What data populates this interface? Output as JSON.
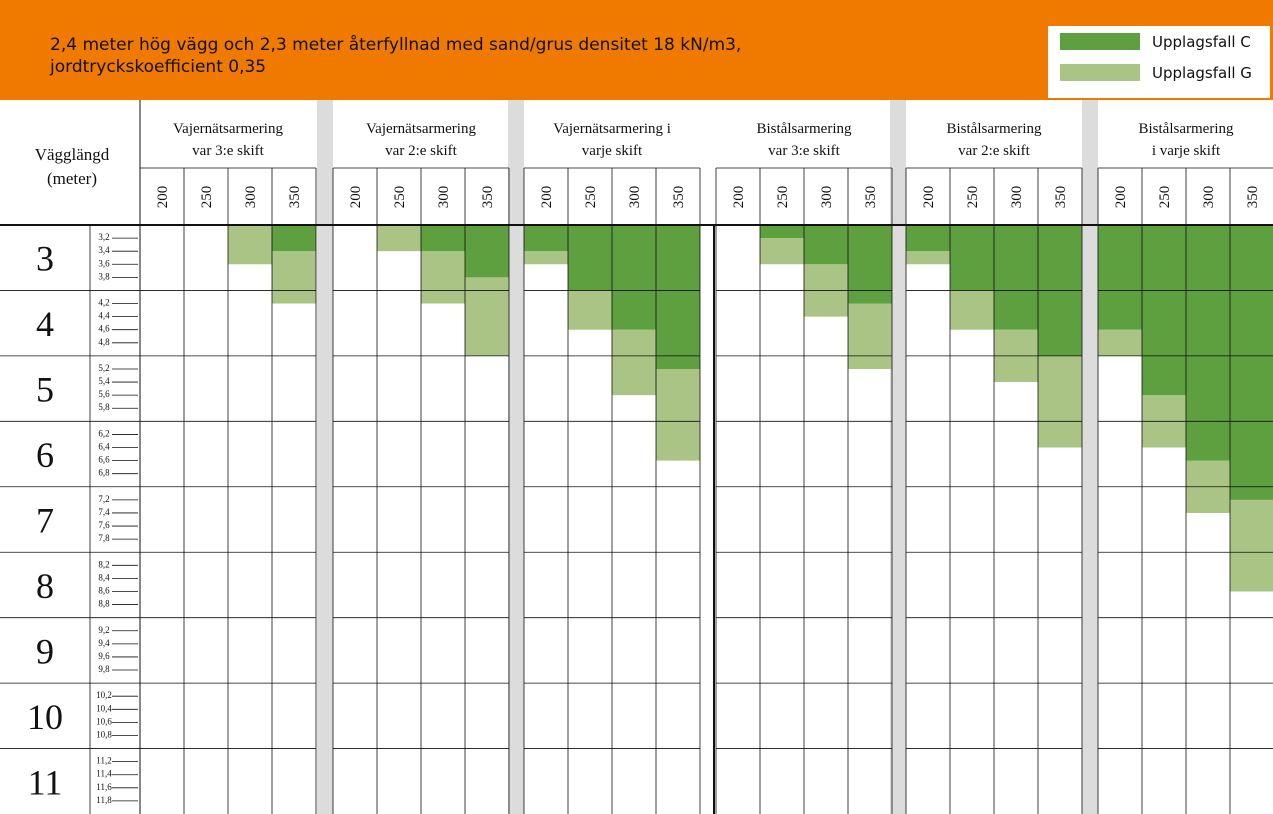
{
  "header": {
    "title_lines": [
      "2,4 meter hög vägg och 2,3 meter återfyllnad med sand/grus densitet 18 kN/m3,",
      "jordtryckskoefficient 0,35"
    ],
    "background": "#f07a00"
  },
  "legend": [
    {
      "label": "Upplagsfall C",
      "color": "#5e9f3f"
    },
    {
      "label": "Upplagsfall G",
      "color": "#a9c485"
    }
  ],
  "table": {
    "row_header": [
      "Vägglängd",
      "(meter)"
    ],
    "ylim": [
      3,
      12
    ],
    "rows": [
      {
        "label": "3",
        "sub": [
          "3,2",
          "3,4",
          "3,6",
          "3,8"
        ]
      },
      {
        "label": "4",
        "sub": [
          "4,2",
          "4,4",
          "4,6",
          "4,8"
        ]
      },
      {
        "label": "5",
        "sub": [
          "5,2",
          "5,4",
          "5,6",
          "5,8"
        ]
      },
      {
        "label": "6",
        "sub": [
          "6,2",
          "6,4",
          "6,6",
          "6,8"
        ]
      },
      {
        "label": "7",
        "sub": [
          "7,2",
          "7,4",
          "7,6",
          "7,8"
        ]
      },
      {
        "label": "8",
        "sub": [
          "8,2",
          "8,4",
          "8,6",
          "8,8"
        ]
      },
      {
        "label": "9",
        "sub": [
          "9,2",
          "9,4",
          "9,6",
          "9,8"
        ]
      },
      {
        "label": "10",
        "sub": [
          "10,2",
          "10,4",
          "10,6",
          "10,8"
        ]
      },
      {
        "label": "11",
        "sub": [
          "11,2",
          "11,4",
          "11,6",
          "11,8"
        ]
      }
    ],
    "groups": [
      {
        "name_lines": [
          "Vajernätsarmering",
          "var 3:e skift"
        ],
        "columns": [
          {
            "label": "200",
            "C": null,
            "G": null
          },
          {
            "label": "250",
            "C": null,
            "G": null
          },
          {
            "label": "300",
            "C": null,
            "G": 3.6
          },
          {
            "label": "350",
            "C": 3.4,
            "G": 4.2
          }
        ]
      },
      {
        "name_lines": [
          "Vajernätsarmering",
          "var 2:e skift"
        ],
        "columns": [
          {
            "label": "200",
            "C": null,
            "G": null
          },
          {
            "label": "250",
            "C": null,
            "G": 3.4
          },
          {
            "label": "300",
            "C": 3.4,
            "G": 4.2
          },
          {
            "label": "350",
            "C": 3.8,
            "G": 5.0
          }
        ]
      },
      {
        "name_lines": [
          "Vajernätsarmering i",
          "varje skift"
        ],
        "columns": [
          {
            "label": "200",
            "C": 3.4,
            "G": 3.6
          },
          {
            "label": "250",
            "C": 4.0,
            "G": 4.6
          },
          {
            "label": "300",
            "C": 4.6,
            "G": 5.6
          },
          {
            "label": "350",
            "C": 5.2,
            "G": 6.6
          }
        ]
      },
      {
        "name_lines": [
          "Bistålsarmering",
          "var 3:e skift"
        ],
        "columns": [
          {
            "label": "200",
            "C": null,
            "G": null
          },
          {
            "label": "250",
            "C": 3.2,
            "G": 3.6
          },
          {
            "label": "300",
            "C": 3.6,
            "G": 4.4
          },
          {
            "label": "350",
            "C": 4.2,
            "G": 5.2
          }
        ]
      },
      {
        "name_lines": [
          "Bistålsarmering",
          "var 2:e skift"
        ],
        "columns": [
          {
            "label": "200",
            "C": 3.4,
            "G": 3.6
          },
          {
            "label": "250",
            "C": 4.0,
            "G": 4.6
          },
          {
            "label": "300",
            "C": 4.6,
            "G": 5.4
          },
          {
            "label": "350",
            "C": 5.0,
            "G": 6.4
          }
        ]
      },
      {
        "name_lines": [
          "Bistålsarmering",
          "i varje skift"
        ],
        "columns": [
          {
            "label": "200",
            "C": 4.6,
            "G": 5.0
          },
          {
            "label": "250",
            "C": 5.6,
            "G": 6.4
          },
          {
            "label": "300",
            "C": 6.6,
            "G": 7.4
          },
          {
            "label": "350",
            "C": 7.2,
            "G": 8.6
          }
        ]
      }
    ]
  }
}
